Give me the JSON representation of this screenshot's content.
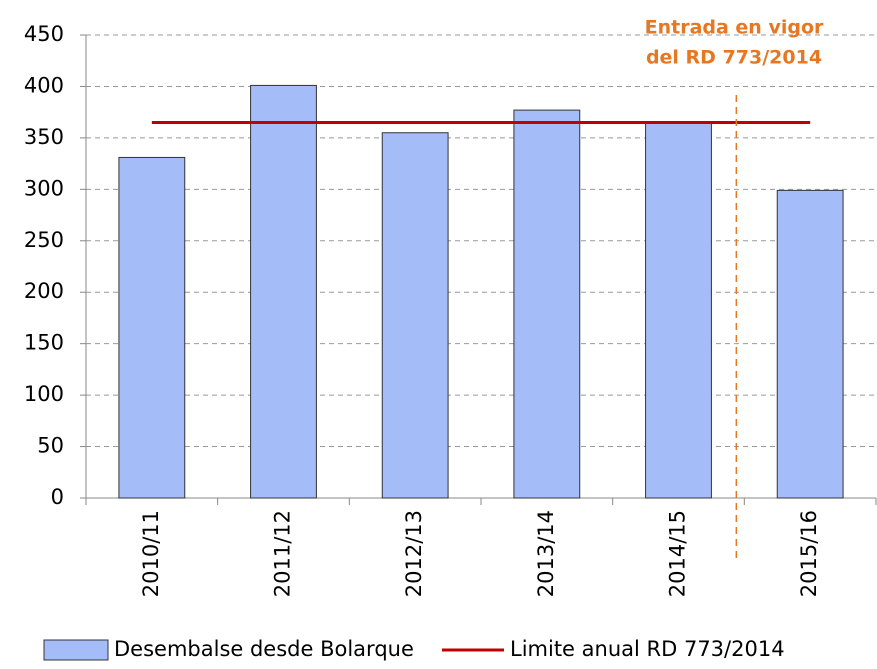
{
  "chart_data": {
    "type": "bar",
    "categories": [
      "2010/11",
      "2011/12",
      "2012/13",
      "2013/14",
      "2014/15",
      "2015/16"
    ],
    "series": [
      {
        "name": "Desembalse desde Bolarque",
        "type": "bar",
        "color": "#a4bcf7",
        "values": [
          331,
          401,
          355,
          377,
          364,
          299
        ]
      },
      {
        "name": "Limite anual RD 773/2014",
        "type": "line",
        "color": "#c00000",
        "values": [
          365,
          365,
          365,
          365,
          365,
          365
        ]
      }
    ],
    "annotations": [
      "Entrada en vigor",
      "del RD 773/2014"
    ],
    "ylim": [
      0,
      450
    ],
    "yticks": [
      0,
      50,
      100,
      150,
      200,
      250,
      300,
      350,
      400,
      450
    ],
    "grid": true
  }
}
